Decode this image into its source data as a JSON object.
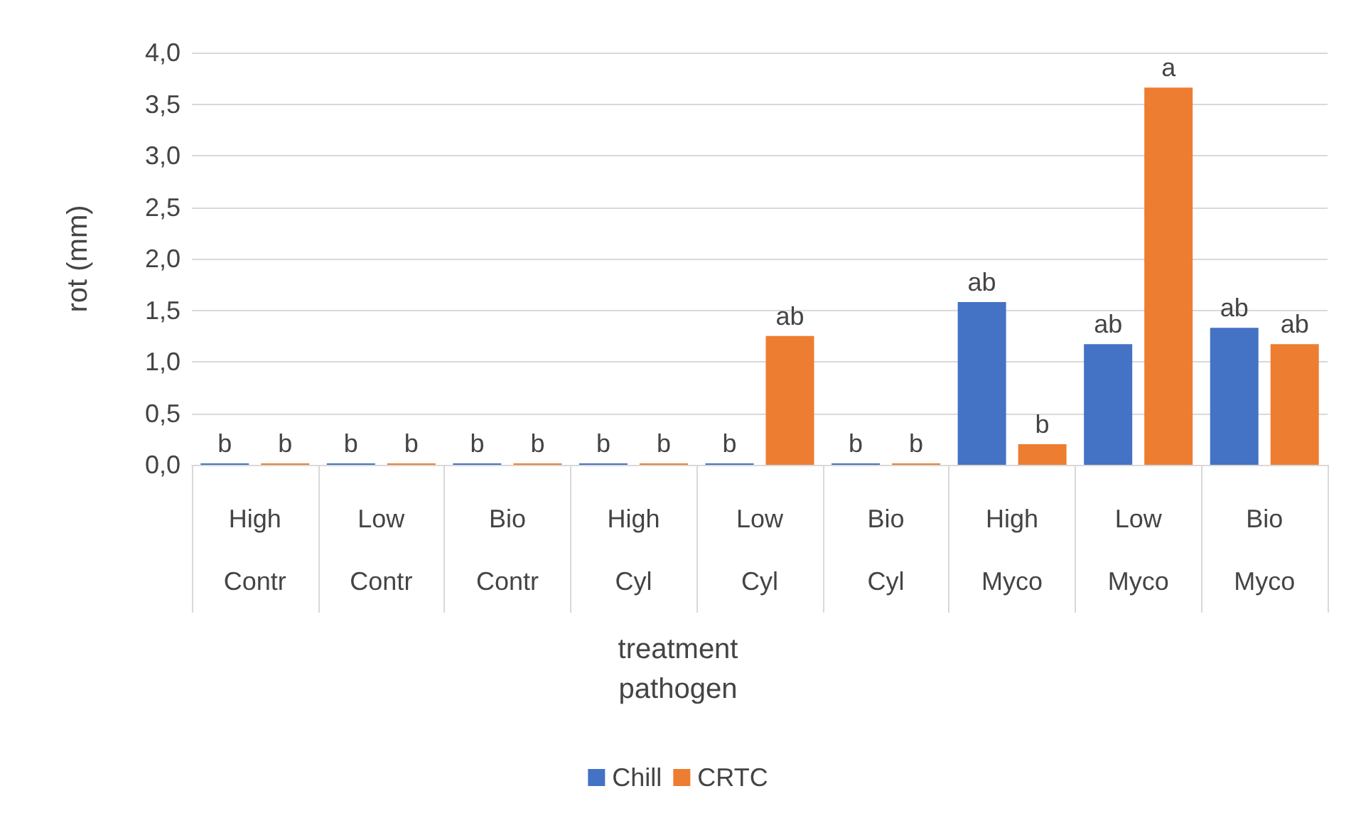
{
  "chart_data": {
    "type": "bar",
    "annotations": [
      "treatment",
      "pathogen"
    ],
    "ylabel": "rot (mm)",
    "categories": [
      "High\nContr",
      "Low\nContr",
      "Bio\nContr",
      "High\nCyl",
      "Low\nCyl",
      "Bio\nCyl",
      "High\nMyco",
      "Low\nMyco",
      "Bio\nMyco"
    ],
    "series": [
      {
        "name": "Chill",
        "color": "#4472c4",
        "values": [
          0,
          0,
          0,
          0,
          0,
          0,
          1.58,
          1.17,
          1.33
        ],
        "value_labels": [
          "b",
          "b",
          "b",
          "b",
          "b",
          "b",
          "ab",
          "ab",
          "ab"
        ]
      },
      {
        "name": "CRTC",
        "color": "#ed7d31",
        "values": [
          0,
          0,
          0,
          0,
          1.25,
          0,
          0.2,
          3.66,
          1.17
        ],
        "value_labels": [
          "b",
          "b",
          "b",
          "b",
          "ab",
          "b",
          "b",
          "a",
          "ab"
        ]
      }
    ],
    "ylim": [
      0,
      4
    ],
    "yticks": [
      {
        "value": 0,
        "label": "0,0"
      },
      {
        "value": 0.5,
        "label": "0,5"
      },
      {
        "value": 1,
        "label": "1,0"
      },
      {
        "value": 1.5,
        "label": "1,5"
      },
      {
        "value": 2,
        "label": "2,0"
      },
      {
        "value": 2.5,
        "label": "2,5"
      },
      {
        "value": 3,
        "label": "3,0"
      },
      {
        "value": 3.5,
        "label": "3,5"
      },
      {
        "value": 4,
        "label": "4,0"
      }
    ],
    "grid": "y",
    "legend": "bottom"
  }
}
